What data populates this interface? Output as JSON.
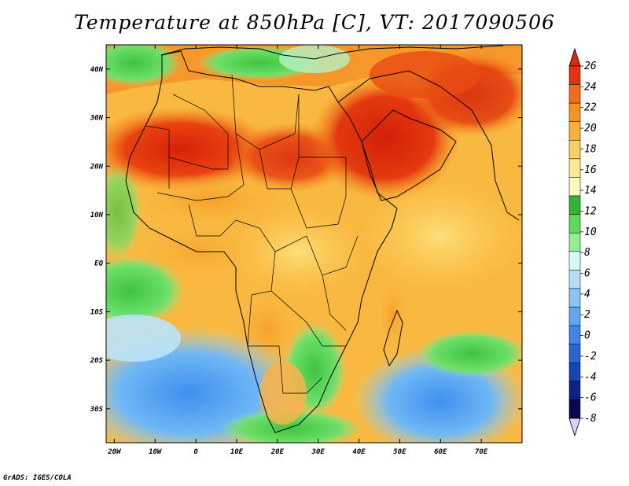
{
  "title": "Temperature at 850hPa [C], VT: 2017090506",
  "credit": "GrADS: IGES/COLA",
  "map": {
    "lon_range": [
      -22,
      80
    ],
    "lat_range": [
      -37,
      45
    ],
    "lat_ticks": [
      {
        "value": 40,
        "label": "40N"
      },
      {
        "value": 30,
        "label": "30N"
      },
      {
        "value": 20,
        "label": "20N"
      },
      {
        "value": 10,
        "label": "10N"
      },
      {
        "value": 0,
        "label": "EQ"
      },
      {
        "value": -10,
        "label": "10S"
      },
      {
        "value": -20,
        "label": "20S"
      },
      {
        "value": -30,
        "label": "30S"
      }
    ],
    "lon_ticks": [
      {
        "value": -20,
        "label": "20W"
      },
      {
        "value": -10,
        "label": "10W"
      },
      {
        "value": 0,
        "label": "0"
      },
      {
        "value": 10,
        "label": "10E"
      },
      {
        "value": 20,
        "label": "20E"
      },
      {
        "value": 30,
        "label": "30E"
      },
      {
        "value": 40,
        "label": "40E"
      },
      {
        "value": 50,
        "label": "50E"
      },
      {
        "value": 60,
        "label": "60E"
      },
      {
        "value": 70,
        "label": "70E"
      }
    ],
    "colors": {
      "ocean_south": "#4fa3f5",
      "ocean_cool": "#8ccaf7",
      "sea_mild": "#5ed85e",
      "land_warm": "#fbc555",
      "land_hot": "#f58a1e",
      "land_hottest": "#e1260a"
    }
  },
  "colorbar": {
    "levels": [
      26,
      24,
      22,
      20,
      18,
      16,
      14,
      12,
      10,
      8,
      6,
      4,
      2,
      0,
      -2,
      -4,
      -6,
      -8
    ],
    "labels": [
      "26",
      "24",
      "22",
      "20",
      "18",
      "16",
      "14",
      "12",
      "10",
      "8",
      "6",
      "4",
      "2",
      "0",
      "-2",
      "-4",
      "-6",
      "-8"
    ],
    "colors": [
      "#e5310d",
      "#f36a17",
      "#f7931f",
      "#f9b13a",
      "#fbcf63",
      "#fde895",
      "#fdf7c0",
      "#31b631",
      "#5fd85f",
      "#93ee92",
      "#d7f8f8",
      "#b5dcf8",
      "#87c6f5",
      "#62a6ef",
      "#4186e6",
      "#2665d3",
      "#1446b6",
      "#0b2287",
      "#060a52"
    ],
    "top_arrow_color": "#d92b0c",
    "bottom_arrow_color": "#d8d6f5"
  }
}
